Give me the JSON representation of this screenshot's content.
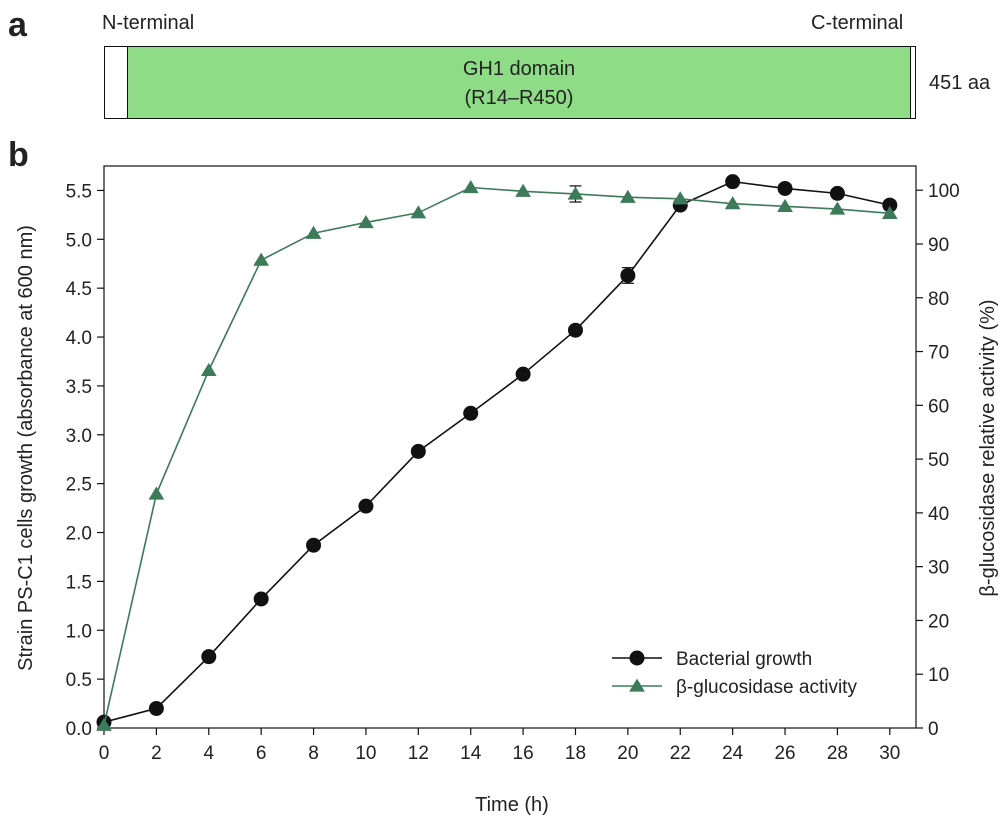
{
  "panel_a": {
    "letter": "a",
    "n_terminal": "N-terminal",
    "c_terminal": "C-terminal",
    "domain_name": "GH1 domain",
    "domain_range": "(R14–R450)",
    "length_label": "451 aa",
    "protein_length": 451,
    "domain_start": 14,
    "domain_end": 450,
    "domain_color": "#8fdc86"
  },
  "panel_b": {
    "letter": "b"
  },
  "chart_data": {
    "type": "line",
    "title": "",
    "xlabel": "Time (h)",
    "ylabel": "Strain PS-C1 cells growth (absorbance at 600 nm)",
    "y2label": "β-glucosidase relative activity (%)",
    "xlim": [
      0,
      31
    ],
    "ylim": [
      0,
      5.75
    ],
    "y2lim": [
      0,
      104.5
    ],
    "xticks": [
      "0",
      "2",
      "4",
      "6",
      "8",
      "10",
      "12",
      "14",
      "16",
      "18",
      "20",
      "22",
      "24",
      "26",
      "28",
      "30"
    ],
    "yticks": [
      "0.0",
      "0.5",
      "1.0",
      "1.5",
      "2.0",
      "2.5",
      "3.0",
      "3.5",
      "4.0",
      "4.5",
      "5.0",
      "5.5"
    ],
    "y2ticks": [
      "0",
      "10",
      "20",
      "30",
      "40",
      "50",
      "60",
      "70",
      "80",
      "90",
      "100"
    ],
    "legend_position": "bottom-right",
    "grid": false,
    "series": [
      {
        "name": "Bacterial growth",
        "axis": "left",
        "marker": "circle",
        "color": "#111111",
        "x": [
          0,
          2,
          4,
          6,
          8,
          10,
          12,
          14,
          16,
          18,
          20,
          22,
          24,
          26,
          28,
          30
        ],
        "values": [
          0.06,
          0.2,
          0.73,
          1.32,
          1.87,
          2.27,
          2.83,
          3.22,
          3.62,
          4.07,
          4.63,
          5.35,
          5.59,
          5.52,
          5.47,
          5.35
        ],
        "errors": [
          0,
          0,
          0,
          0,
          0,
          0,
          0,
          0,
          0,
          0,
          0.08,
          0,
          0,
          0,
          0,
          0
        ]
      },
      {
        "name": "β-glucosidase activity",
        "axis": "right",
        "marker": "triangle",
        "color": "#3d7a5a",
        "x": [
          0,
          2,
          4,
          6,
          8,
          10,
          12,
          14,
          16,
          18,
          20,
          22,
          24,
          26,
          28,
          30
        ],
        "values": [
          0.5,
          43.5,
          66.5,
          87,
          92,
          94,
          95.8,
          100.5,
          99.8,
          99.3,
          98.7,
          98.4,
          97.5,
          97,
          96.5,
          95.7
        ],
        "errors": [
          0,
          0,
          0,
          0,
          0,
          0,
          0,
          0,
          0,
          1.5,
          0,
          0,
          0,
          0,
          0,
          0
        ]
      }
    ]
  }
}
